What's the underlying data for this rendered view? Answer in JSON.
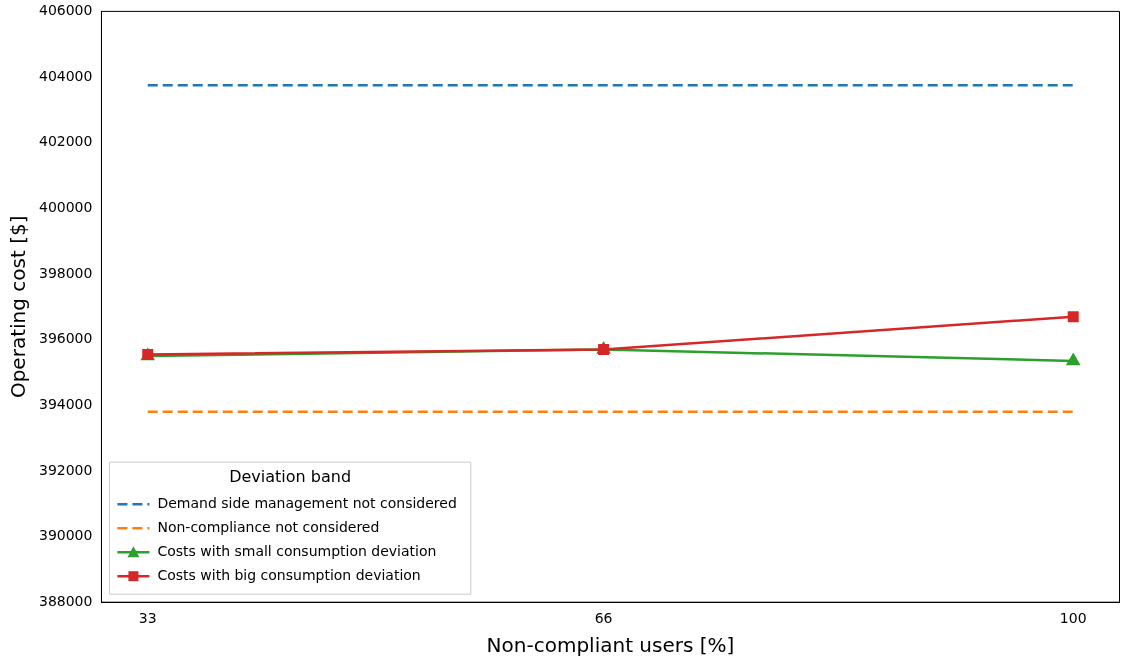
{
  "chart_data": {
    "type": "line",
    "xlabel": "Non-compliant users [%]",
    "ylabel": "Operating cost [$]",
    "x": [
      33,
      66,
      100
    ],
    "xlim": [
      29.65,
      103.35
    ],
    "xticks": [
      33,
      66,
      100
    ],
    "ylim": [
      388000,
      406000
    ],
    "yticks": [
      388000,
      390000,
      392000,
      394000,
      396000,
      398000,
      400000,
      402000,
      404000,
      406000
    ],
    "grid": false,
    "legend": "bottom left",
    "legend_title": "Deviation band",
    "series": [
      {
        "name": "Demand side management not considered",
        "color": "#1f77b4",
        "values": [
          403750,
          403750,
          403750
        ],
        "line_style": "dashed",
        "marker": "none"
      },
      {
        "name": "Non-compliance not considered",
        "color": "#ff7f0e",
        "values": [
          393800,
          393800,
          393800
        ],
        "line_style": "dashed",
        "marker": "none"
      },
      {
        "name": "Costs with small consumption deviation",
        "color": "#2ca02c",
        "values": [
          395500,
          395700,
          395350
        ],
        "line_style": "solid",
        "marker": "triangle"
      },
      {
        "name": "Costs with big consumption deviation",
        "color": "#d62728",
        "values": [
          395550,
          395700,
          396700
        ],
        "line_style": "solid",
        "marker": "square"
      }
    ]
  }
}
